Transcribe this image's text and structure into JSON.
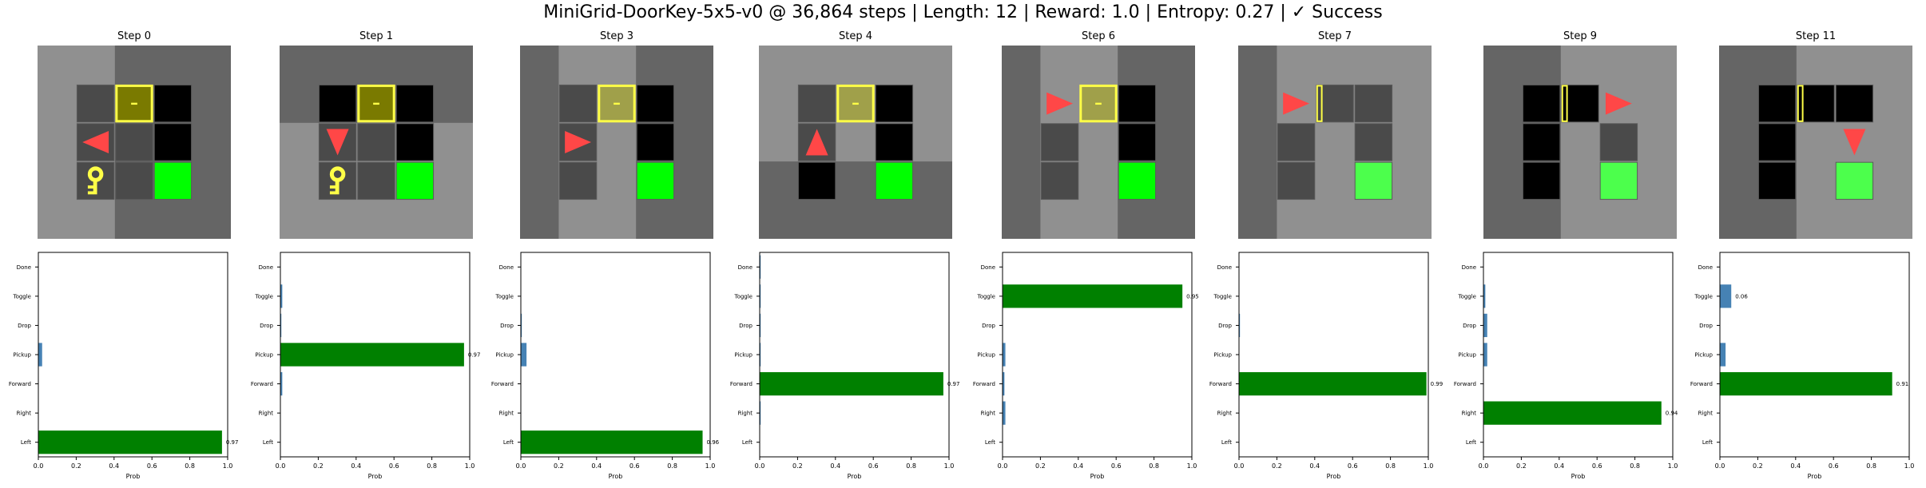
{
  "suptitle": "MiniGrid-DoorKey-5x5-v0 @ 36,864 steps | Length: 12 | Reward: 1.0 | Entropy: 0.27 | ✓ Success",
  "colors": {
    "wall": "#656565",
    "floor": "#909090",
    "unseen": "#000000",
    "seen_floor": "#4a4a4a",
    "agent": "#ff4747",
    "door_locked": "#ffff47",
    "door_fill_dark": "#7a7a00",
    "door_fill_light": "#a0a04a",
    "goal": "#00ff00",
    "goal_light": "#4cff4c",
    "key": "#ffff47",
    "bar_selected": "#008000",
    "bar_other": "#4682b4"
  },
  "frames": [
    {
      "title": "Step 0",
      "cells": [
        [
          "W",
          "W",
          "W",
          "W",
          "W"
        ],
        [
          "W",
          "S",
          "D",
          "U",
          "W"
        ],
        [
          "W",
          "S",
          "S",
          "U",
          "W"
        ],
        [
          "W",
          "K",
          "S",
          "G",
          "W"
        ],
        [
          "W",
          "W",
          "W",
          "W",
          "W"
        ]
      ],
      "bg": "light_left",
      "door": "locked_dark",
      "agent": {
        "r": 2,
        "c": 1,
        "dir": "left"
      }
    },
    {
      "title": "Step 1",
      "cells": [
        [
          "W",
          "W",
          "W",
          "W",
          "W"
        ],
        [
          "W",
          "U",
          "D",
          "U",
          "W"
        ],
        [
          "W",
          "S",
          "S",
          "U",
          "W"
        ],
        [
          "W",
          "K",
          "S",
          "G",
          "W"
        ],
        [
          "W",
          "W",
          "W",
          "W",
          "W"
        ]
      ],
      "bg": "light_bottom",
      "door": "locked_dark",
      "agent": {
        "r": 2,
        "c": 1,
        "dir": "down"
      }
    },
    {
      "title": "Step 3",
      "cells": [
        [
          "W",
          "W",
          "W",
          "W",
          "W"
        ],
        [
          "W",
          "S",
          "D",
          "U",
          "W"
        ],
        [
          "W",
          "S",
          "F",
          "U",
          "W"
        ],
        [
          "W",
          "S",
          "F",
          "G",
          "W"
        ],
        [
          "W",
          "W",
          "W",
          "W",
          "W"
        ]
      ],
      "bg": "light_mid",
      "door": "locked_light",
      "agent": {
        "r": 2,
        "c": 1,
        "dir": "right"
      }
    },
    {
      "title": "Step 4",
      "cells": [
        [
          "W",
          "W",
          "W",
          "W",
          "W"
        ],
        [
          "W",
          "S",
          "D",
          "U",
          "W"
        ],
        [
          "W",
          "S",
          "F",
          "U",
          "W"
        ],
        [
          "W",
          "U",
          "F",
          "G",
          "W"
        ],
        [
          "W",
          "W",
          "W",
          "W",
          "W"
        ]
      ],
      "bg": "light_top",
      "door": "locked_light",
      "agent": {
        "r": 2,
        "c": 1,
        "dir": "up"
      }
    },
    {
      "title": "Step 6",
      "cells": [
        [
          "W",
          "W",
          "W",
          "W",
          "W"
        ],
        [
          "W",
          "F",
          "D",
          "U",
          "W"
        ],
        [
          "W",
          "S",
          "F",
          "U",
          "W"
        ],
        [
          "W",
          "S",
          "F",
          "G",
          "W"
        ],
        [
          "W",
          "W",
          "W",
          "W",
          "W"
        ]
      ],
      "bg": "light_mid",
      "door": "locked_light",
      "agent": {
        "r": 1,
        "c": 1,
        "dir": "right"
      }
    },
    {
      "title": "Step 7",
      "cells": [
        [
          "W",
          "W",
          "W",
          "W",
          "W"
        ],
        [
          "W",
          "F",
          "S",
          "S",
          "W"
        ],
        [
          "W",
          "S",
          "F",
          "S",
          "W"
        ],
        [
          "W",
          "S",
          "F",
          "G",
          "W"
        ],
        [
          "W",
          "W",
          "W",
          "W",
          "W"
        ]
      ],
      "bg": "light_right",
      "door": "open",
      "agent": {
        "r": 1,
        "c": 1,
        "dir": "right"
      }
    },
    {
      "title": "Step 9",
      "cells": [
        [
          "W",
          "W",
          "W",
          "W",
          "W"
        ],
        [
          "W",
          "U",
          "U",
          "F",
          "W"
        ],
        [
          "W",
          "U",
          "F",
          "S",
          "W"
        ],
        [
          "W",
          "U",
          "F",
          "G",
          "W"
        ],
        [
          "W",
          "W",
          "W",
          "W",
          "W"
        ]
      ],
      "bg": "light_right2",
      "door": "open",
      "agent": {
        "r": 1,
        "c": 3,
        "dir": "right"
      }
    },
    {
      "title": "Step 11",
      "cells": [
        [
          "W",
          "W",
          "W",
          "W",
          "W"
        ],
        [
          "W",
          "U",
          "U",
          "U",
          "W"
        ],
        [
          "W",
          "U",
          "F",
          "F",
          "W"
        ],
        [
          "W",
          "U",
          "F",
          "G",
          "W"
        ],
        [
          "W",
          "W",
          "W",
          "W",
          "W"
        ]
      ],
      "bg": "light_right2",
      "door": "open",
      "agent": {
        "r": 2,
        "c": 3,
        "dir": "down"
      }
    }
  ],
  "chart_data": {
    "type": "bar",
    "orientation": "horizontal",
    "categories": [
      "Left",
      "Right",
      "Forward",
      "Pickup",
      "Drop",
      "Toggle",
      "Done"
    ],
    "xlabel": "Prob",
    "xlim": [
      0,
      1
    ],
    "xticks": [
      "0.0",
      "0.2",
      "0.4",
      "0.6",
      "0.8",
      "1.0"
    ],
    "panels": [
      {
        "step": "Step 0",
        "values": [
          0.97,
          0.0,
          0.0,
          0.02,
          0.0,
          0.0,
          0.0
        ],
        "selected": "Left",
        "label": "0.97"
      },
      {
        "step": "Step 1",
        "values": [
          0.0,
          0.0,
          0.01,
          0.97,
          0.005,
          0.01,
          0.0
        ],
        "selected": "Pickup",
        "label": "0.97"
      },
      {
        "step": "Step 3",
        "values": [
          0.96,
          0.0,
          0.0,
          0.03,
          0.005,
          0.0,
          0.0
        ],
        "selected": "Left",
        "label": "0.96"
      },
      {
        "step": "Step 4",
        "values": [
          0.0,
          0.005,
          0.97,
          0.005,
          0.005,
          0.005,
          0.005
        ],
        "selected": "Forward",
        "label": "0.97"
      },
      {
        "step": "Step 6",
        "values": [
          0.0,
          0.015,
          0.01,
          0.015,
          0.0,
          0.95,
          0.0
        ],
        "selected": "Toggle",
        "label": "0.95"
      },
      {
        "step": "Step 7",
        "values": [
          0.0,
          0.0,
          0.99,
          0.0,
          0.005,
          0.0,
          0.0
        ],
        "selected": "Forward",
        "label": "0.99"
      },
      {
        "step": "Step 9",
        "values": [
          0.0,
          0.94,
          0.0,
          0.02,
          0.02,
          0.01,
          0.0
        ],
        "selected": "Right",
        "label": "0.94"
      },
      {
        "step": "Step 11",
        "values": [
          0.0,
          0.0,
          0.91,
          0.03,
          0.0,
          0.06,
          0.0
        ],
        "selected": "Forward",
        "label": "0.91",
        "extra_label": {
          "category": "Toggle",
          "text": "0.06"
        }
      }
    ]
  }
}
